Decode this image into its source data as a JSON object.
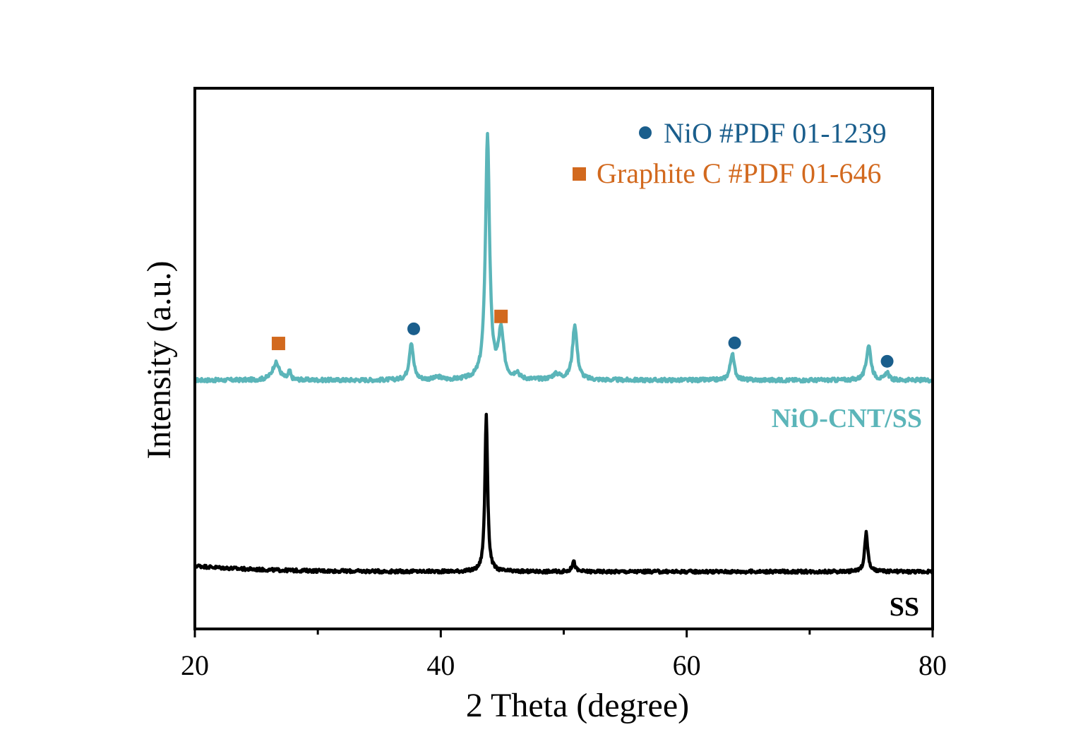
{
  "chart_data": {
    "type": "line",
    "title": "",
    "xlabel": "2 Theta (degree)",
    "ylabel": "Intensity (a.u.)",
    "xlim": [
      20,
      80
    ],
    "ylim": [
      0,
      100
    ],
    "xticks": [
      20,
      40,
      60,
      80
    ],
    "xticks_minor": [
      30,
      50,
      70
    ],
    "show_y_ticks": false,
    "grid": false,
    "series": [
      {
        "name": "NiO-CNT/SS",
        "color": "#5bb5b9",
        "baseline": 46,
        "noise": 0.35,
        "peaks": [
          {
            "x": 26.6,
            "h": 3.2,
            "w": 0.35
          },
          {
            "x": 27.7,
            "h": 1.6,
            "w": 0.1
          },
          {
            "x": 37.6,
            "h": 7.0,
            "w": 0.2
          },
          {
            "x": 39.8,
            "h": 0.5,
            "w": 0.3
          },
          {
            "x": 43.8,
            "h": 45.0,
            "w": 0.2
          },
          {
            "x": 44.9,
            "h": 8.7,
            "w": 0.25
          },
          {
            "x": 46.2,
            "h": 1.2,
            "w": 0.2
          },
          {
            "x": 49.4,
            "h": 1.0,
            "w": 0.4
          },
          {
            "x": 50.9,
            "h": 10.2,
            "w": 0.22
          },
          {
            "x": 63.7,
            "h": 4.9,
            "w": 0.2
          },
          {
            "x": 74.8,
            "h": 6.5,
            "w": 0.22
          },
          {
            "x": 76.3,
            "h": 1.5,
            "w": 0.15
          }
        ]
      },
      {
        "name": "SS",
        "color": "#000000",
        "baseline": 10.6,
        "baseline_start": 11.7,
        "noise": 0.3,
        "peaks": [
          {
            "x": 43.7,
            "h": 29.2,
            "w": 0.13
          },
          {
            "x": 50.8,
            "h": 1.9,
            "w": 0.15
          },
          {
            "x": 74.6,
            "h": 7.2,
            "w": 0.15
          }
        ]
      }
    ],
    "series_labels": [
      {
        "text": "NiO-CNT/SS",
        "color": "#5bb5b9"
      },
      {
        "text": "SS",
        "color": "#000000"
      }
    ],
    "markers": [
      {
        "shape": "square",
        "color": "#d2691e",
        "x": 26.8,
        "y": 52.8
      },
      {
        "shape": "circle",
        "color": "#1a5e8c",
        "x": 37.8,
        "y": 55.5
      },
      {
        "shape": "square",
        "color": "#d2691e",
        "x": 44.9,
        "y": 57.8
      },
      {
        "shape": "circle",
        "color": "#1a5e8c",
        "x": 63.9,
        "y": 52.9
      },
      {
        "shape": "circle",
        "color": "#1a5e8c",
        "x": 76.3,
        "y": 49.5
      }
    ],
    "legend": [
      {
        "shape": "circle",
        "color": "#1a5e8c",
        "label": "NiO #PDF 01-1239"
      },
      {
        "shape": "square",
        "color": "#d2691e",
        "label": "Graphite C #PDF 01-646"
      }
    ],
    "legend_position": "top-right"
  }
}
